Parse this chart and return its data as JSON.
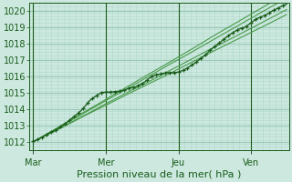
{
  "title": "",
  "xlabel": "Pression niveau de la mer( hPa )",
  "ylabel": "",
  "bg_color": "#cce8df",
  "grid_color_minor": "#b0d8cc",
  "grid_color_major": "#90c0b0",
  "line_color_dark": "#1a5c1a",
  "line_color_med": "#2e7d2e",
  "line_color_light": "#4a9a4a",
  "ylim": [
    1011.5,
    1020.5
  ],
  "yticks": [
    1012,
    1013,
    1014,
    1015,
    1016,
    1017,
    1018,
    1019,
    1020
  ],
  "day_labels": [
    "Mar",
    "Mer",
    "Jeu",
    "Ven"
  ],
  "day_positions": [
    0,
    96,
    192,
    288
  ],
  "total_points": 336,
  "xlabel_fontsize": 8,
  "tick_fontsize": 7
}
